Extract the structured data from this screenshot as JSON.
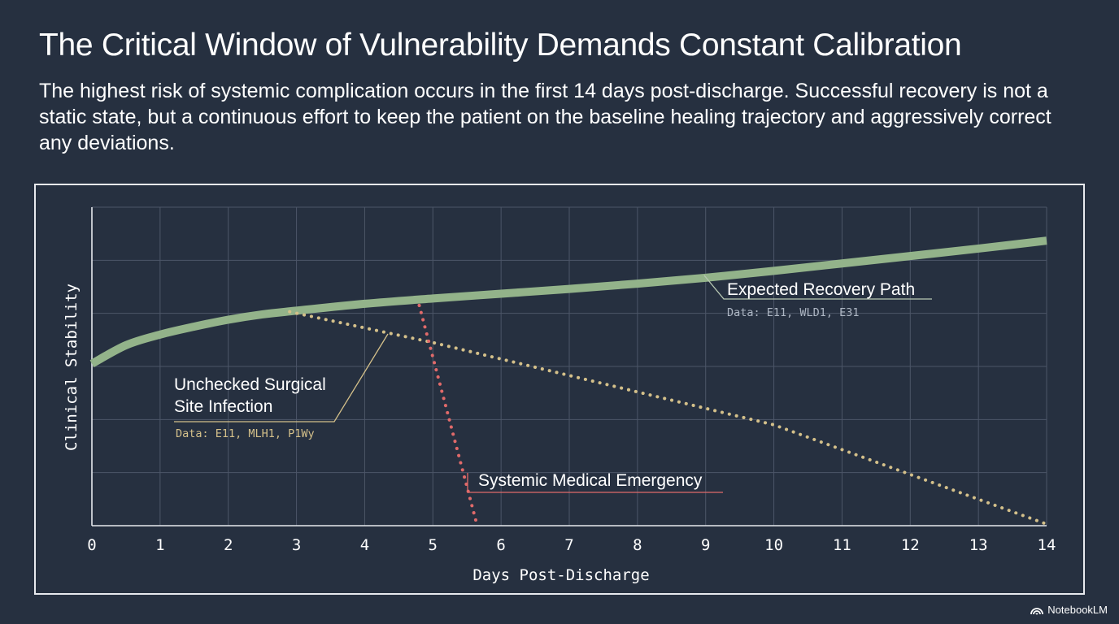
{
  "title": "The Critical Window of Vulnerability Demands Constant Calibration",
  "subtitle": "The highest risk of systemic complication occurs in the first 14 days post-discharge. Successful recovery is not a static state, but a continuous effort to keep the patient on the baseline healing trajectory and aggressively correct any deviations.",
  "brand": {
    "name": "NotebookLM",
    "icon": "notebooklm-logo-icon"
  },
  "chart_data": {
    "type": "line",
    "xlabel": "Days Post-Discharge",
    "ylabel": "Clinical Stability",
    "xlim": [
      0,
      14
    ],
    "ylim": [
      0,
      6
    ],
    "x_ticks": [
      "0",
      "1",
      "2",
      "3",
      "4",
      "5",
      "6",
      "7",
      "8",
      "9",
      "10",
      "11",
      "12",
      "13",
      "14"
    ],
    "grid": true,
    "series": [
      {
        "name": "Expected Recovery Path",
        "data_note": "Data: E11, WLD1, E31",
        "color": "#93b38a",
        "style": "solid-thick",
        "points": [
          [
            0,
            3.05
          ],
          [
            0.5,
            3.4
          ],
          [
            1,
            3.6
          ],
          [
            1.5,
            3.75
          ],
          [
            2,
            3.88
          ],
          [
            2.5,
            3.98
          ],
          [
            3,
            4.05
          ],
          [
            4,
            4.18
          ],
          [
            5,
            4.28
          ],
          [
            6,
            4.37
          ],
          [
            7,
            4.46
          ],
          [
            8,
            4.56
          ],
          [
            9,
            4.67
          ],
          [
            10,
            4.8
          ],
          [
            11,
            4.94
          ],
          [
            12,
            5.08
          ],
          [
            13,
            5.22
          ],
          [
            14,
            5.37
          ]
        ]
      },
      {
        "name": "Unchecked Surgical Site Infection",
        "data_note": "Data: E11, MLH1, P1Wy",
        "color": "#d4c08a",
        "style": "dotted",
        "points": [
          [
            2.9,
            4.03
          ],
          [
            5,
            3.45
          ],
          [
            10,
            1.9
          ],
          [
            14,
            0.03
          ]
        ]
      },
      {
        "name": "Systemic Medical Emergency",
        "color": "#e06a6a",
        "style": "dotted",
        "points": [
          [
            4.8,
            4.15
          ],
          [
            5.65,
            0.0
          ]
        ]
      }
    ]
  }
}
